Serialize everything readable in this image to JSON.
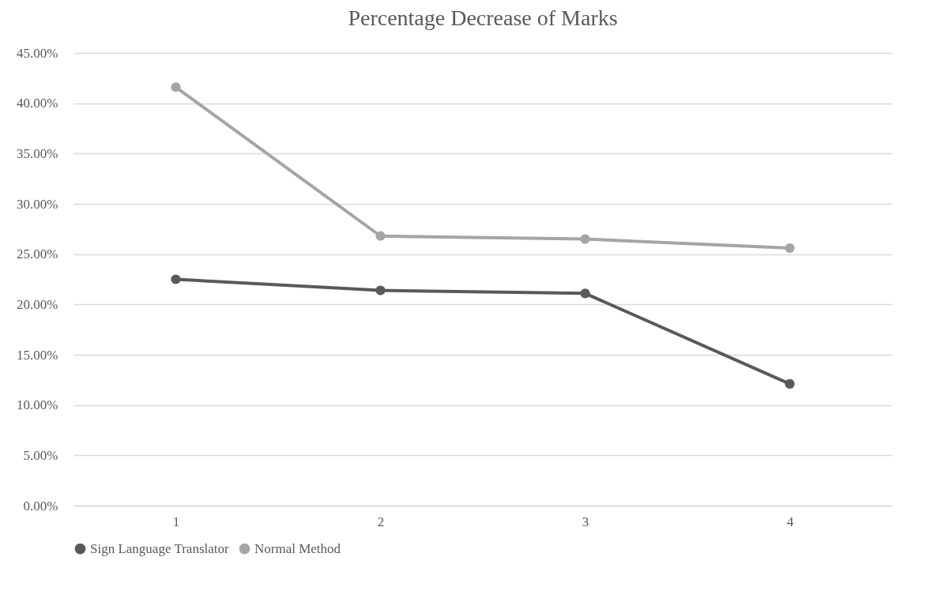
{
  "chart_data": {
    "type": "line",
    "title": "Percentage Decrease of Marks",
    "categories": [
      "1",
      "2",
      "3",
      "4"
    ],
    "series": [
      {
        "name": "Sign Language Translator",
        "color": "#595959",
        "values": [
          22.5,
          21.4,
          21.1,
          12.1
        ]
      },
      {
        "name": "Normal Method",
        "color": "#a5a5a5",
        "values": [
          41.6,
          26.8,
          26.5,
          25.6
        ]
      }
    ],
    "ylim": [
      0,
      45
    ],
    "yticks": [
      {
        "value": 0,
        "label": "0.00%"
      },
      {
        "value": 5,
        "label": "5.00%"
      },
      {
        "value": 10,
        "label": "10.00%"
      },
      {
        "value": 15,
        "label": "15.00%"
      },
      {
        "value": 20,
        "label": "20.00%"
      },
      {
        "value": 25,
        "label": "25.00%"
      },
      {
        "value": 30,
        "label": "30.00%"
      },
      {
        "value": 35,
        "label": "35.00%"
      },
      {
        "value": 40,
        "label": "40.00%"
      },
      {
        "value": 45,
        "label": "45.00%"
      }
    ],
    "grid": "y",
    "legend": "bottom",
    "marker": "circle",
    "line_style": "solid"
  }
}
